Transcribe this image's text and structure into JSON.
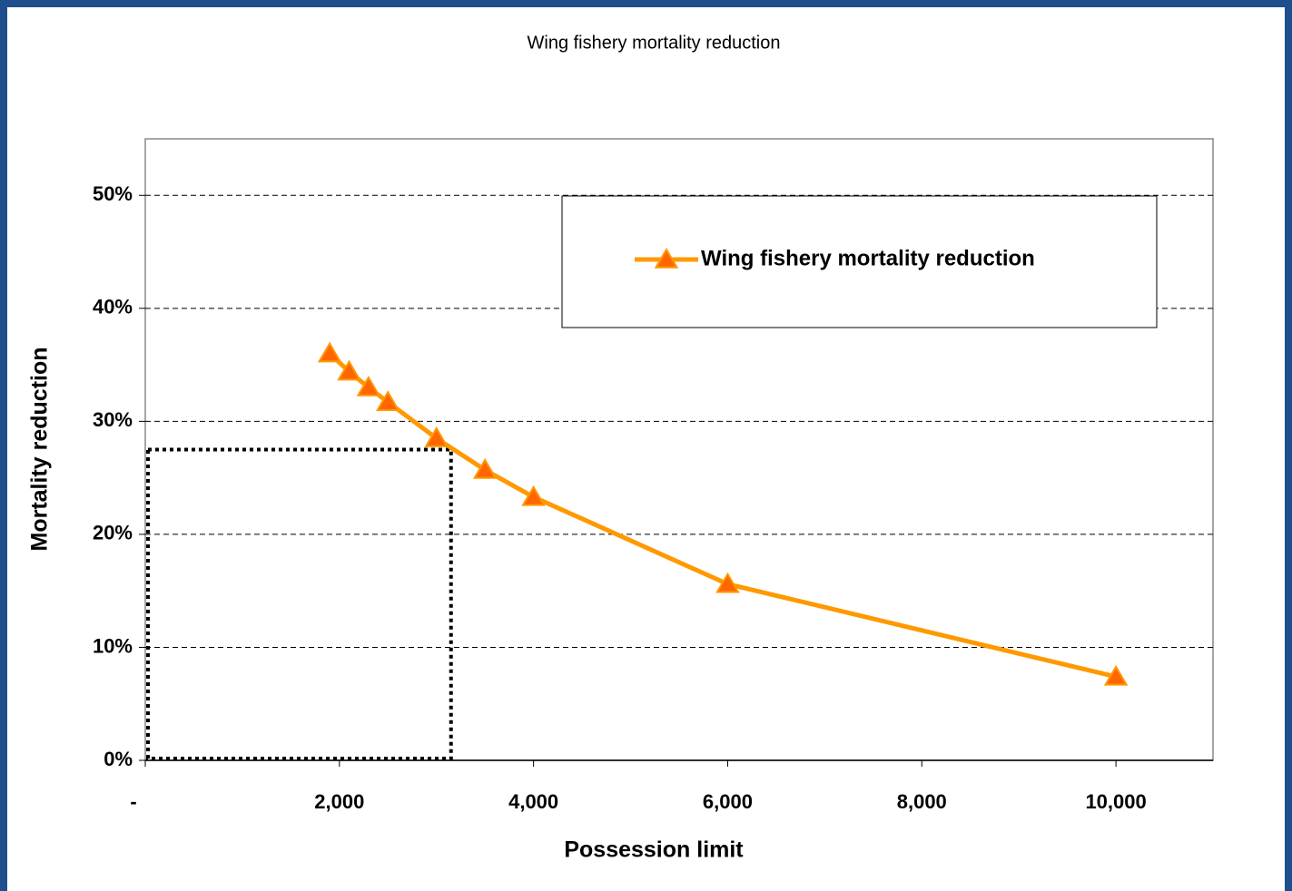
{
  "chart_data": {
    "type": "line",
    "title": "Wing fishery mortality reduction",
    "xlabel": "Possession limit",
    "ylabel": "Mortality reduction",
    "x": [
      1900,
      2100,
      2300,
      2500,
      3000,
      3500,
      4000,
      6000,
      10000
    ],
    "series": [
      {
        "name": "Wing fishery mortality reduction",
        "color": "#ff9900",
        "marker_color": "#ff6600",
        "values": [
          36.0,
          34.4,
          33.0,
          31.7,
          28.5,
          25.7,
          23.3,
          15.6,
          7.4
        ]
      }
    ],
    "xlim": [
      0,
      11000
    ],
    "xticks": [
      {
        "value": 0,
        "label": "-"
      },
      {
        "value": 2000,
        "label": "2,000"
      },
      {
        "value": 4000,
        "label": "4,000"
      },
      {
        "value": 6000,
        "label": "6,000"
      },
      {
        "value": 8000,
        "label": "8,000"
      },
      {
        "value": 10000,
        "label": "10,000"
      }
    ],
    "ylim": [
      0,
      55
    ],
    "yticks": [
      {
        "value": 0,
        "label": "0%"
      },
      {
        "value": 10,
        "label": "10%"
      },
      {
        "value": 20,
        "label": "20%"
      },
      {
        "value": 30,
        "label": "30%"
      },
      {
        "value": 40,
        "label": "40%"
      },
      {
        "value": 50,
        "label": "50%"
      }
    ],
    "grid": true,
    "legend": "upper right",
    "highlight": {
      "x": 3150,
      "y": 27.5
    }
  }
}
